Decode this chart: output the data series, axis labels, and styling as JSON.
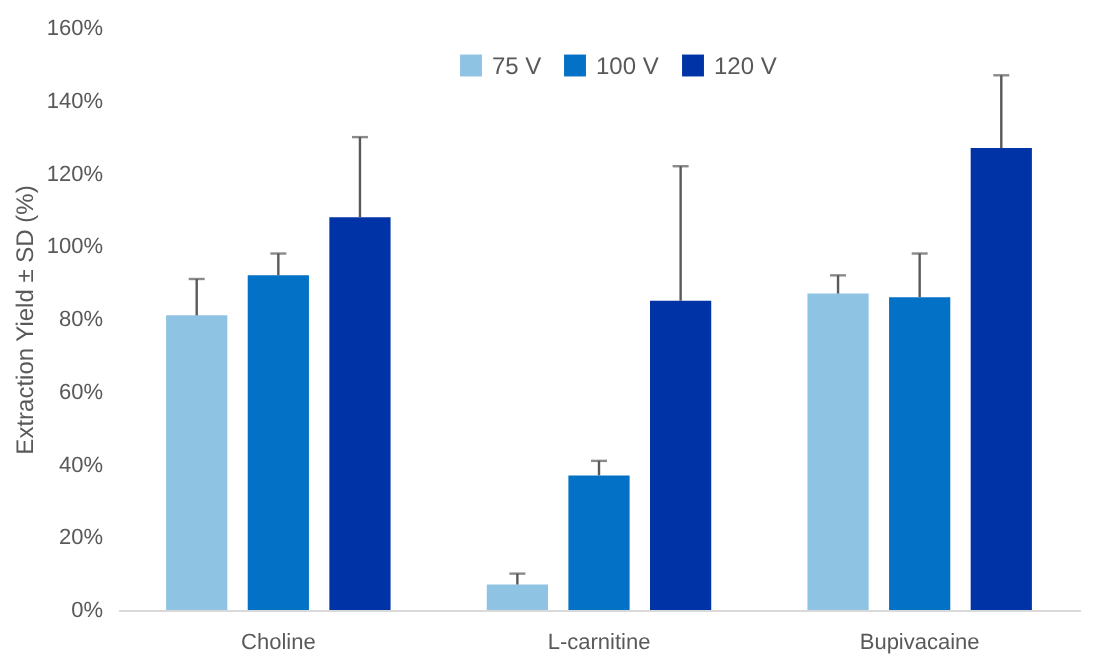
{
  "chart_data": {
    "type": "bar",
    "ylabel": "Extraction Yield ± SD (%)",
    "categories": [
      "Choline",
      "L-carnitine",
      "Bupivacaine"
    ],
    "series": [
      {
        "name": "75 V",
        "color": "#8fc3e3",
        "values": [
          81,
          7,
          87
        ],
        "errors": [
          [
            81,
            91
          ],
          [
            7,
            10
          ],
          [
            87,
            92
          ]
        ]
      },
      {
        "name": "100 V",
        "color": "#0372c6",
        "values": [
          92,
          37,
          86
        ],
        "errors": [
          [
            92,
            98
          ],
          [
            37,
            41
          ],
          [
            86,
            98
          ]
        ]
      },
      {
        "name": "120 V",
        "color": "#0033a6",
        "values": [
          108,
          85,
          127
        ],
        "errors": [
          [
            108,
            130
          ],
          [
            85,
            122
          ],
          [
            127,
            147
          ]
        ]
      }
    ],
    "ylim": [
      0,
      160
    ],
    "yticks": [
      {
        "value": 0,
        "label": "0%"
      },
      {
        "value": 20,
        "label": "20%"
      },
      {
        "value": 40,
        "label": "40%"
      },
      {
        "value": 60,
        "label": "60%"
      },
      {
        "value": 80,
        "label": "80%"
      },
      {
        "value": 100,
        "label": "100%"
      },
      {
        "value": 120,
        "label": "120%"
      },
      {
        "value": 140,
        "label": "140%"
      },
      {
        "value": 160,
        "label": "160%"
      }
    ],
    "grid": false,
    "legend": "top"
  }
}
